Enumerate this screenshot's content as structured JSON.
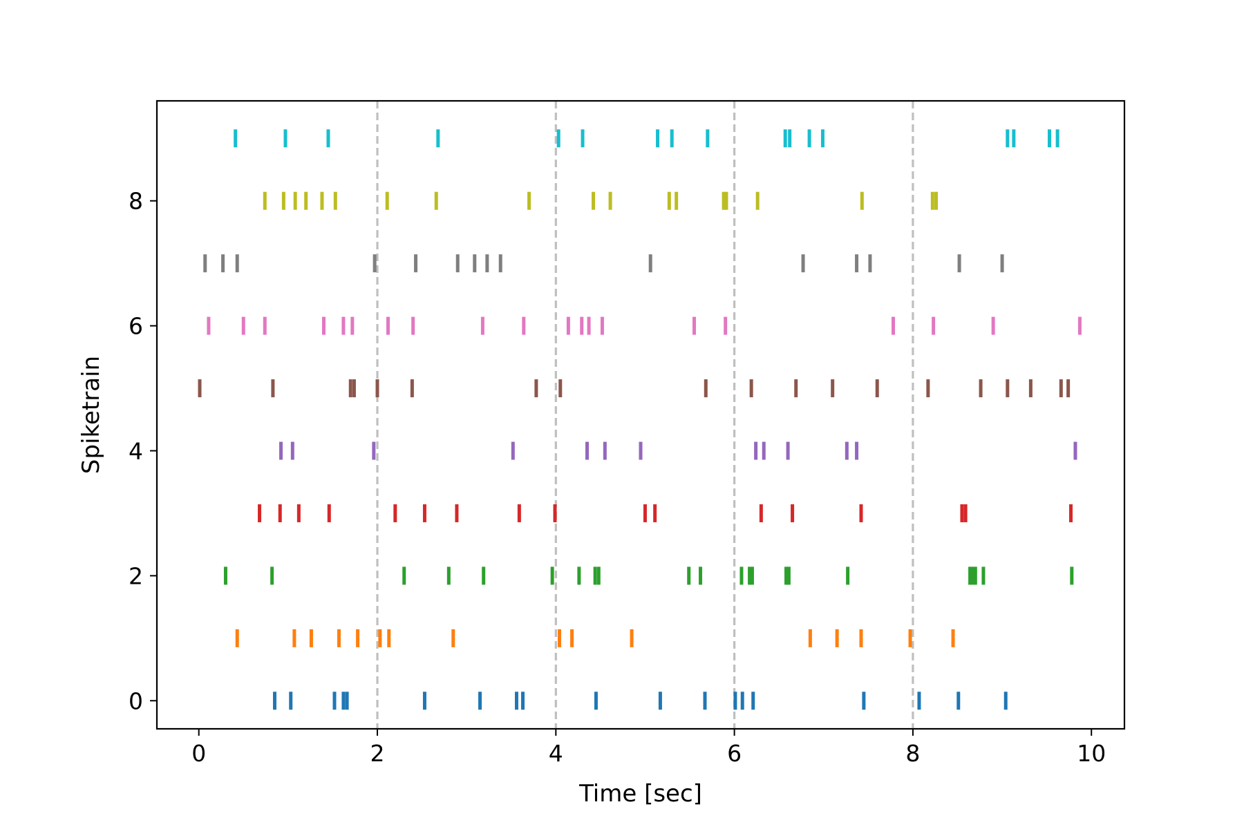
{
  "chart_data": {
    "type": "scatter",
    "marker": "vertical-tick",
    "title": "",
    "xlabel": "Time [sec]",
    "ylabel": "Spiketrain",
    "xlim": [
      -0.47,
      10.37
    ],
    "ylim": [
      -0.45,
      9.6
    ],
    "xticks": [
      0,
      2,
      4,
      6,
      8,
      10
    ],
    "yticks": [
      0,
      2,
      4,
      6,
      8
    ],
    "grid": false,
    "legend": "none",
    "vlines": {
      "x": [
        2,
        4,
        6,
        8
      ],
      "color": "#bfbfbf",
      "style": "dashed"
    },
    "series": [
      {
        "values": [
          0.85,
          1.03,
          1.52,
          1.62,
          1.66,
          2.53,
          3.15,
          3.56,
          3.63,
          4.45,
          5.17,
          5.67,
          6.01,
          6.09,
          6.21,
          7.45,
          8.07,
          8.51,
          9.04
        ],
        "color": "#1f77b4"
      },
      {
        "values": [
          0.43,
          1.07,
          1.26,
          1.57,
          1.78,
          2.03,
          2.13,
          2.85,
          4.04,
          4.18,
          4.85,
          6.85,
          7.15,
          7.42,
          7.97,
          8.45
        ],
        "color": "#ff7f0e"
      },
      {
        "values": [
          0.3,
          0.82,
          2.3,
          2.8,
          3.19,
          3.96,
          4.26,
          4.44,
          4.48,
          5.49,
          5.62,
          6.08,
          6.17,
          6.2,
          6.58,
          6.61,
          7.27,
          8.64,
          8.67,
          8.7,
          8.79,
          9.78
        ],
        "color": "#2ca02c"
      },
      {
        "values": [
          0.68,
          0.91,
          1.12,
          1.46,
          2.2,
          2.53,
          2.89,
          3.59,
          3.99,
          5.0,
          5.11,
          6.3,
          6.65,
          7.42,
          8.55,
          8.59,
          9.77
        ],
        "color": "#d62728"
      },
      {
        "values": [
          0.92,
          1.05,
          1.96,
          3.52,
          4.35,
          4.55,
          4.95,
          6.24,
          6.33,
          6.6,
          7.26,
          7.37,
          9.82
        ],
        "color": "#9467bd"
      },
      {
        "values": [
          0.01,
          0.83,
          1.7,
          1.74,
          2.0,
          2.39,
          3.78,
          4.05,
          5.68,
          6.19,
          6.69,
          7.1,
          7.6,
          8.17,
          8.76,
          9.06,
          9.32,
          9.66,
          9.74
        ],
        "color": "#8c564b"
      },
      {
        "values": [
          0.11,
          0.5,
          0.74,
          1.4,
          1.62,
          1.72,
          2.12,
          2.4,
          3.18,
          3.64,
          4.14,
          4.29,
          4.37,
          4.52,
          5.55,
          5.9,
          7.78,
          8.23,
          8.9,
          9.87
        ],
        "color": "#e377c2"
      },
      {
        "values": [
          0.07,
          0.27,
          0.43,
          1.97,
          2.43,
          2.9,
          3.09,
          3.23,
          3.38,
          5.06,
          6.77,
          7.37,
          7.52,
          8.52,
          9.0
        ],
        "color": "#7f7f7f"
      },
      {
        "values": [
          0.74,
          0.95,
          1.08,
          1.2,
          1.38,
          1.53,
          2.11,
          2.66,
          3.7,
          4.42,
          4.61,
          5.27,
          5.35,
          5.88,
          5.91,
          6.26,
          7.43,
          8.22,
          8.26
        ],
        "color": "#bcbd22"
      },
      {
        "values": [
          0.41,
          0.97,
          1.45,
          2.68,
          4.03,
          4.3,
          5.14,
          5.3,
          5.7,
          6.57,
          6.62,
          6.84,
          6.99,
          9.06,
          9.13,
          9.53,
          9.62
        ],
        "color": "#17becf"
      }
    ]
  }
}
